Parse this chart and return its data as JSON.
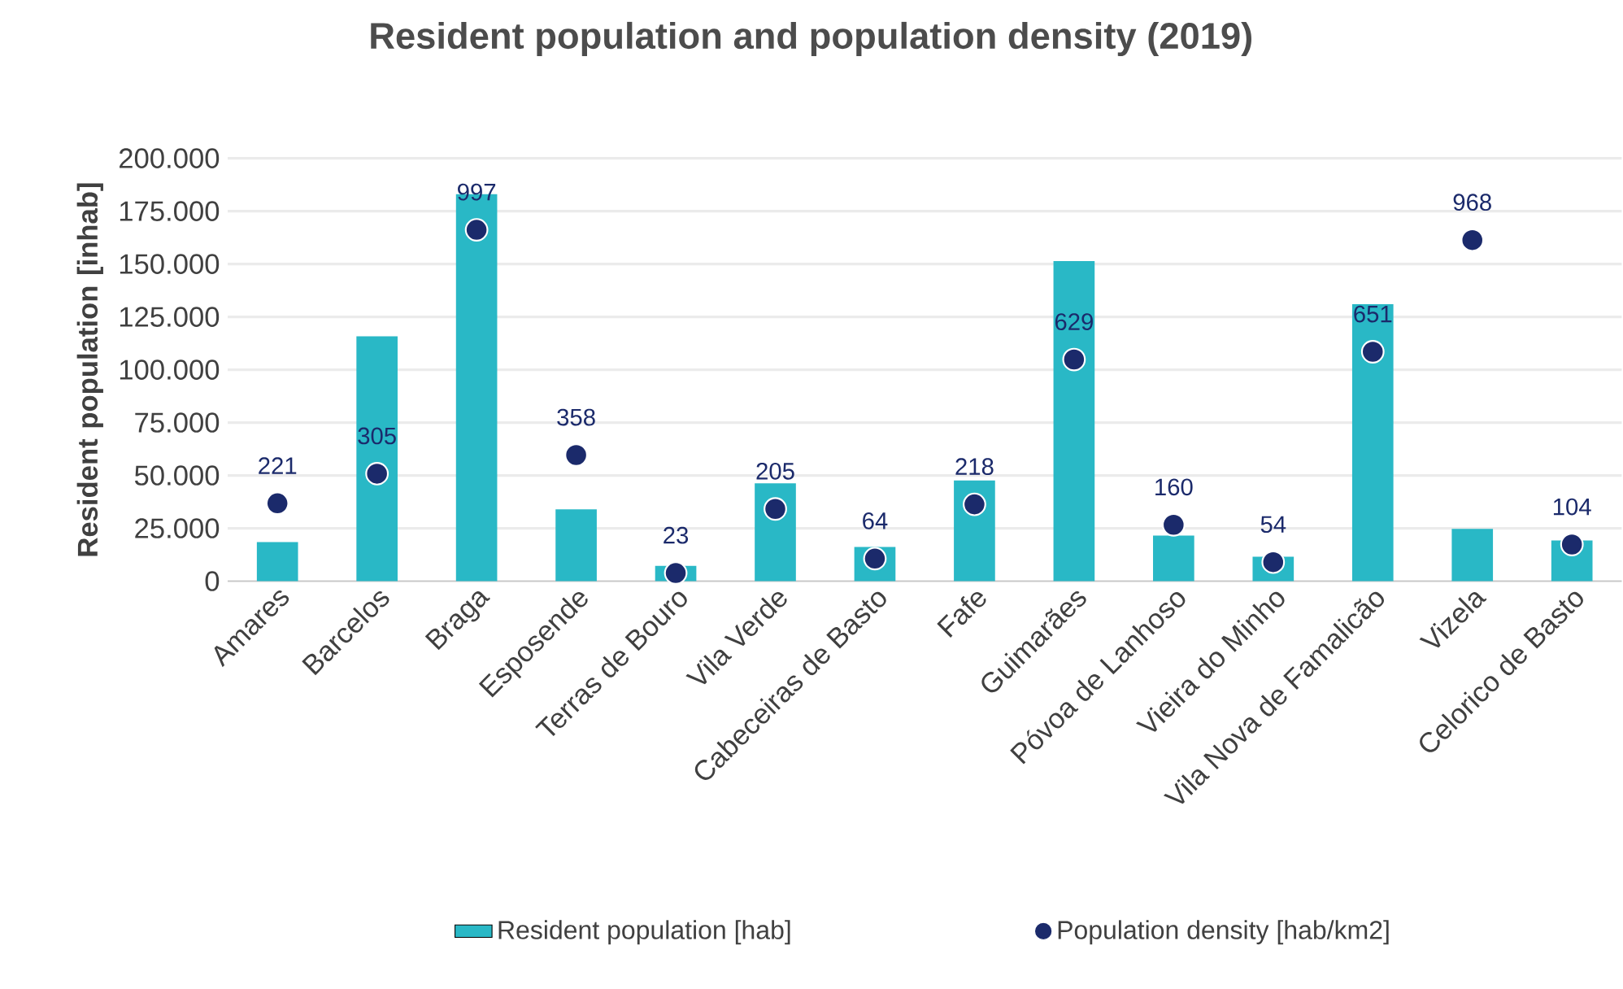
{
  "chart_data": {
    "type": "bar",
    "title": "Resident population and population density (2019)",
    "ylabel": "Resident population [inhab]",
    "categories": [
      "Amares",
      "Barcelos",
      "Braga",
      "Esposende",
      "Terras de Bouro",
      "Vila Verde",
      "Cabeceiras de Basto",
      "Fafe",
      "Guimarães",
      "Póvoa de Lanhoso",
      "Vieira do Minho",
      "Vila Nova de Famalicão",
      "Vizela",
      "Celorico de Basto"
    ],
    "series": [
      {
        "name": "Resident population [hab]",
        "color": "#29b8c6",
        "values": [
          18500,
          115800,
          183000,
          34000,
          7200,
          46300,
          16200,
          47600,
          151400,
          21600,
          11600,
          131000,
          24700,
          19300
        ]
      },
      {
        "name": "Population density [hab/km2]",
        "type": "scatter",
        "axis": "y2",
        "color": "#1b2a6b",
        "values": [
          221,
          305,
          997,
          358,
          23,
          205,
          64,
          218,
          629,
          160,
          54,
          651,
          968,
          104
        ],
        "value_labels": [
          "221",
          "305",
          "997",
          "358",
          "23",
          "205",
          "64",
          "218",
          "629",
          "160",
          "54",
          "651",
          "968",
          "104"
        ]
      }
    ],
    "ylim": [
      0,
      200000
    ],
    "yticks": [
      {
        "value": 0,
        "label": "0"
      },
      {
        "value": 25000,
        "label": "25.000"
      },
      {
        "value": 50000,
        "label": "50.000"
      },
      {
        "value": 75000,
        "label": "75.000"
      },
      {
        "value": 100000,
        "label": "100.000"
      },
      {
        "value": 125000,
        "label": "125.000"
      },
      {
        "value": 150000,
        "label": "150.000"
      },
      {
        "value": 175000,
        "label": "175.000"
      },
      {
        "value": 200000,
        "label": "200.000"
      }
    ],
    "y2lim": [
      0,
      1200
    ],
    "tick_labels": "xy",
    "grid": "y",
    "legend": "bottom"
  }
}
